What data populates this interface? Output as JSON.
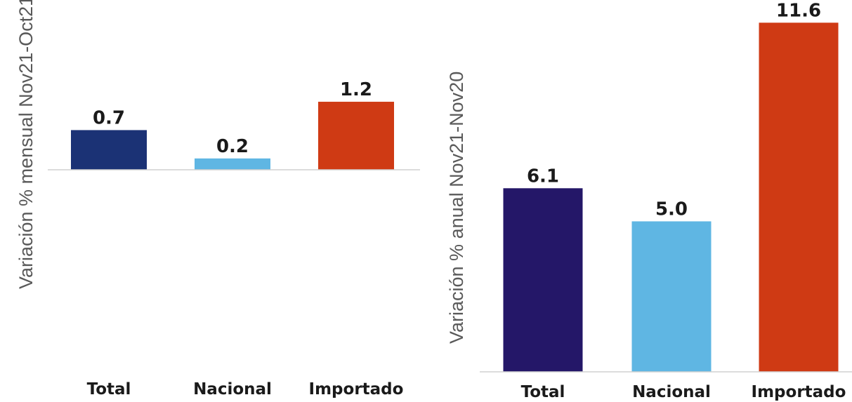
{
  "chart_data": [
    {
      "type": "bar",
      "ylabel": "Variación % mensual Nov21-Oct21",
      "xlabel": "",
      "categories": [
        "Total",
        "Nacional",
        "Importado"
      ],
      "values": [
        0.7,
        0.2,
        1.2
      ],
      "value_labels": [
        "0.7",
        "0.2",
        "1.2"
      ],
      "colors": [
        "#1b3275",
        "#5fb6e3",
        "#cf3a14"
      ],
      "grid": false,
      "legend": "none"
    },
    {
      "type": "bar",
      "ylabel": "Variación % anual Nov21-Nov20",
      "xlabel": "",
      "categories": [
        "Total",
        "Nacional",
        "Importado"
      ],
      "values": [
        6.1,
        5.0,
        11.6
      ],
      "value_labels": [
        "6.1",
        "5.0",
        "11.6"
      ],
      "colors": [
        "#241768",
        "#5fb6e3",
        "#cf3a14"
      ],
      "grid": false,
      "legend": "none"
    }
  ]
}
